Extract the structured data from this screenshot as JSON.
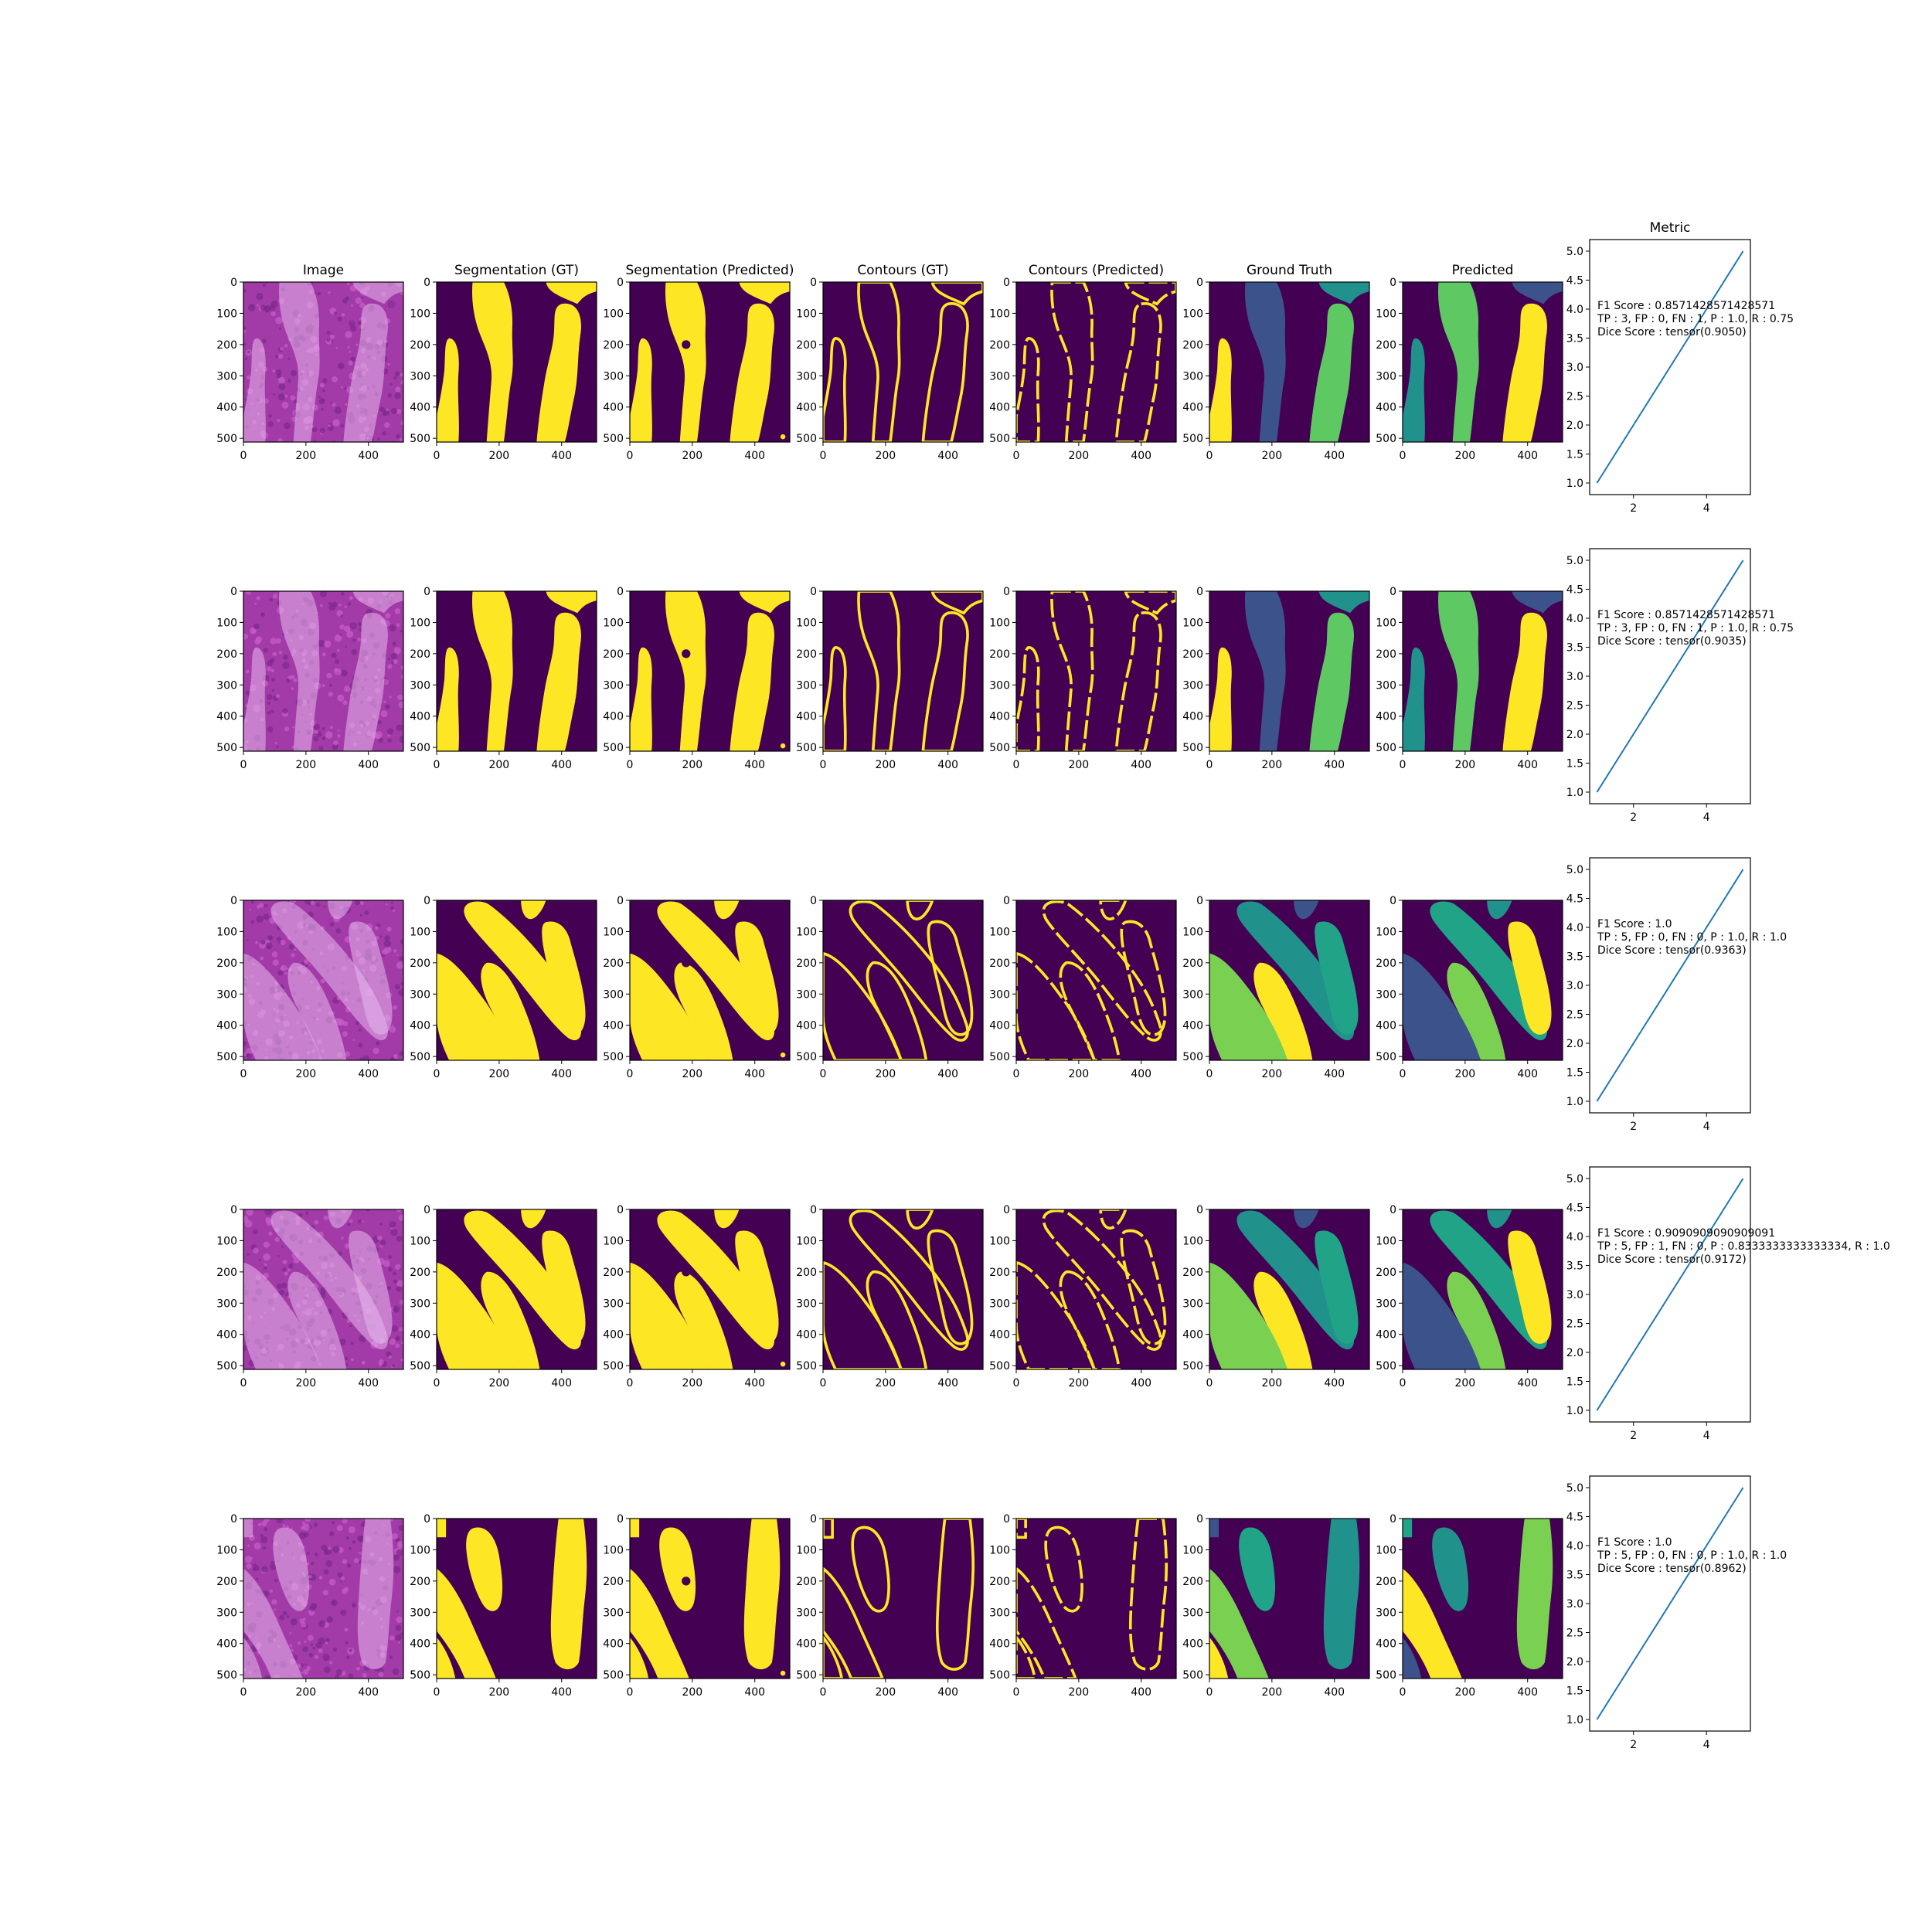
{
  "figure": {
    "column_titles": [
      "Image",
      "Segmentation (GT)",
      "Segmentation (Predicted)",
      "Contours (GT)",
      "Contours (Predicted)",
      "Ground Truth",
      "Predicted"
    ],
    "image_axis": {
      "x_ticks": [
        "0",
        "200",
        "400"
      ],
      "y_ticks": [
        "0",
        "100",
        "200",
        "300",
        "400",
        "500"
      ]
    },
    "colors": {
      "background": "#440154",
      "foreground": "#fde725",
      "instances": [
        "#fde725",
        "#3b528b",
        "#5ec962",
        "#21918c",
        "#20a386",
        "#7ad151",
        "#472d7b"
      ],
      "tissue": [
        "#a23aa8",
        "#c85ec9",
        "#7a2a8a",
        "#e7b8ec"
      ],
      "line": "#1f77b4"
    }
  },
  "metric_title": "Metric",
  "rows": [
    {
      "f1": "F1 Score : 0.8571428571428571",
      "counts": "TP : 3, FP : 0, FN : 1, P : 1.0, R : 0.75",
      "dice": "Dice Score : tensor(0.9050)"
    },
    {
      "f1": "F1 Score : 0.8571428571428571",
      "counts": "TP : 3, FP : 0, FN : 1, P : 1.0, R : 0.75",
      "dice": "Dice Score : tensor(0.9035)"
    },
    {
      "f1": "F1 Score : 1.0",
      "counts": "TP : 5, FP : 0, FN : 0, P : 1.0, R : 1.0",
      "dice": "Dice Score : tensor(0.9363)"
    },
    {
      "f1": "F1 Score : 0.9090909090909091",
      "counts": "TP : 5, FP : 1, FN : 0, P : 0.8333333333333334, R : 1.0",
      "dice": "Dice Score : tensor(0.9172)"
    },
    {
      "f1": "F1 Score : 1.0",
      "counts": "TP : 5, FP : 0, FN : 0, P : 1.0, R : 1.0",
      "dice": "Dice Score : tensor(0.8962)"
    }
  ],
  "chart_data": {
    "type": "line",
    "x": [
      1,
      2,
      3,
      4,
      5
    ],
    "y": [
      1,
      2,
      3,
      4,
      5
    ],
    "xlim": [
      0.8,
      5.2
    ],
    "ylim": [
      0.8,
      5.2
    ],
    "x_ticks": [
      "2",
      "4"
    ],
    "y_ticks": [
      "1.0",
      "1.5",
      "2.0",
      "2.5",
      "3.0",
      "3.5",
      "4.0",
      "4.5",
      "5.0"
    ],
    "panel_count": 5
  }
}
